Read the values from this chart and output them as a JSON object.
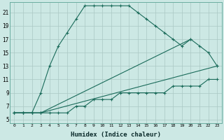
{
  "xlabel": "Humidex (Indice chaleur)",
  "background_color": "#cce8e4",
  "grid_color": "#aac8c4",
  "line_color": "#1a6b5a",
  "xlim": [
    -0.5,
    23.5
  ],
  "ylim": [
    4.5,
    22.5
  ],
  "xticks": [
    0,
    1,
    2,
    3,
    4,
    5,
    6,
    7,
    8,
    9,
    10,
    11,
    12,
    13,
    14,
    15,
    16,
    17,
    18,
    19,
    20,
    21,
    22,
    23
  ],
  "yticks": [
    5,
    7,
    9,
    11,
    13,
    15,
    17,
    19,
    21
  ],
  "line1_x": [
    0,
    1,
    2,
    3,
    4,
    5,
    6,
    7,
    8,
    9,
    10,
    11,
    12,
    13,
    14,
    15,
    16,
    17,
    18,
    19,
    20
  ],
  "line1_y": [
    6,
    6,
    6,
    9,
    13,
    16,
    18,
    20,
    22,
    22,
    22,
    22,
    22,
    22,
    21,
    20,
    19,
    18,
    17,
    16,
    17
  ],
  "line2_x": [
    0,
    1,
    2,
    3,
    20,
    21,
    22,
    23
  ],
  "line2_y": [
    6,
    6,
    6,
    6,
    17,
    16,
    15,
    13
  ],
  "line3_x": [
    0,
    1,
    2,
    3,
    23
  ],
  "line3_y": [
    6,
    6,
    6,
    6,
    13
  ],
  "line4_x": [
    0,
    1,
    2,
    3,
    4,
    5,
    6,
    7,
    8,
    9,
    10,
    11,
    12,
    13,
    14,
    15,
    16,
    17,
    18,
    19,
    20,
    21,
    22,
    23
  ],
  "line4_y": [
    6,
    6,
    6,
    6,
    6,
    6,
    6,
    7,
    7,
    8,
    8,
    8,
    9,
    9,
    9,
    9,
    9,
    9,
    10,
    10,
    10,
    10,
    11,
    11
  ]
}
